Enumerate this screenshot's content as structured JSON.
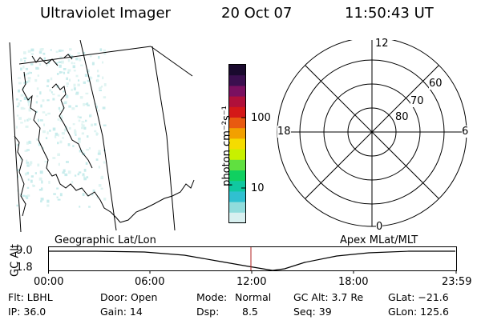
{
  "header": {
    "instrument": "Ultraviolet Imager",
    "date": "20 Oct 07",
    "time": "11:50:43 UT"
  },
  "colorbar": {
    "unit_label": "photon cm⁻²s⁻¹",
    "ticks": [
      "100",
      "10"
    ],
    "colors": [
      "#1a0a2e",
      "#3b0f4f",
      "#7a1060",
      "#b0103a",
      "#d41818",
      "#e85a10",
      "#f2a000",
      "#f5dc00",
      "#c8f000",
      "#60e040",
      "#10d060",
      "#10c8a0",
      "#30c0d0",
      "#90dcdc",
      "#d8f0f0"
    ]
  },
  "polar": {
    "mlt_labels": {
      "top": "12",
      "left": "18",
      "right": "6",
      "bottom": "0"
    },
    "lat_labels": [
      "60",
      "70",
      "80"
    ]
  },
  "timeline": {
    "left_label": "Geographic Lat/Lon",
    "right_label": "Apex MLat/MLT",
    "axis_title": "GC Alt",
    "y_ticks": [
      "9.0",
      "1.8"
    ],
    "x_ticks": [
      "00:00",
      "06:00",
      "12:00",
      "18:00",
      "23:59"
    ]
  },
  "info": {
    "row1": {
      "filter": "Flt: LBHL",
      "door": "Door: Open",
      "mode_label": "Mode:",
      "mode_value": "Normal",
      "gc_alt": "GC Alt: 3.7 Re",
      "glat": "GLat: −21.6"
    },
    "row2": {
      "ip": "IP: 36.0",
      "gain": "Gain: 14",
      "dsp_label": "Dsp:",
      "dsp_value": "8.5",
      "seq": "Seq: 39",
      "glon": "GLon: 125.6"
    }
  }
}
